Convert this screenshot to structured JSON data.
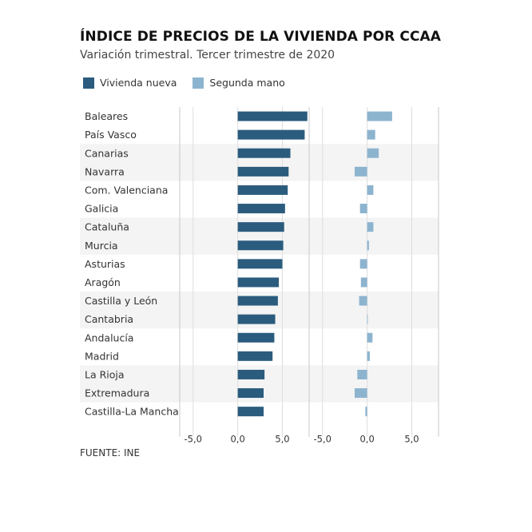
{
  "title": "ÍNDICE DE PRECIOS DE LA VIVIENDA POR CCAA",
  "subtitle": "Variación trimestral. Tercer trimestre de 2020",
  "source": "FUENTE: INE",
  "colors": {
    "nueva": "#2b5c7e",
    "segunda": "#8db4cf",
    "band": "#f4f4f4",
    "gridline": "#dedede"
  },
  "chart_data": {
    "type": "bar",
    "orientation": "horizontal",
    "title": "ÍNDICE DE PRECIOS DE LA VIVIENDA POR CCAA",
    "subtitle": "Variación trimestral. Tercer trimestre de 2020",
    "categories": [
      "Baleares",
      "País Vasco",
      "Canarias",
      "Navarra",
      "Com. Valenciana",
      "Galicia",
      "Cataluña",
      "Murcia",
      "Asturias",
      "Aragón",
      "Castilla y León",
      "Cantabria",
      "Andalucía",
      "Madrid",
      "La Rioja",
      "Extremadura",
      "Castilla-La Mancha"
    ],
    "series": [
      {
        "name": "Vivienda nueva",
        "values": [
          7.8,
          7.5,
          5.9,
          5.7,
          5.6,
          5.3,
          5.2,
          5.1,
          5.0,
          4.6,
          4.5,
          4.2,
          4.1,
          3.9,
          3.0,
          2.9,
          2.9
        ],
        "xlim": [
          -6.5,
          8.0
        ],
        "ticks": [
          "-5,0",
          "0,0",
          "5,0"
        ],
        "tick_values": [
          -5,
          0,
          5
        ]
      },
      {
        "name": "Segunda mano",
        "values": [
          2.8,
          0.9,
          1.3,
          -1.4,
          0.7,
          -0.8,
          0.7,
          0.2,
          -0.8,
          -0.7,
          -0.9,
          0.0,
          0.6,
          0.3,
          -1.1,
          -1.4,
          -0.2
        ],
        "xlim": [
          -6.5,
          8.0
        ],
        "ticks": [
          "-5,0",
          "0,0",
          "5,0"
        ],
        "tick_values": [
          -5,
          0,
          5
        ]
      }
    ],
    "xlabel": "",
    "ylabel": "",
    "legend": "top-left",
    "grid": true
  }
}
